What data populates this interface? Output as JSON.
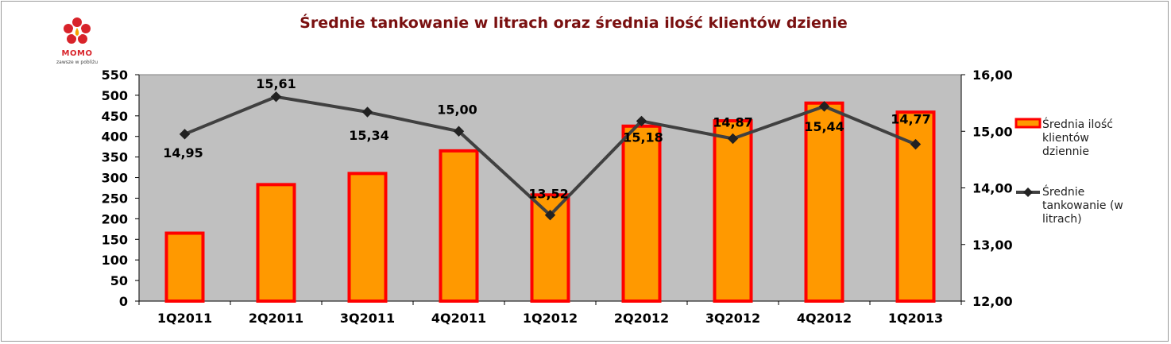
{
  "brand": {
    "name": "MOMO",
    "tagline": "zawsze w pobliżu"
  },
  "chart_data": {
    "type": "bar",
    "title": "Średnie tankowanie w litrach oraz średnia ilość klientów dzienie",
    "categories": [
      "1Q2011",
      "2Q2011",
      "3Q2011",
      "4Q2011",
      "1Q2012",
      "2Q2012",
      "3Q2012",
      "4Q2012",
      "1Q2013"
    ],
    "series": [
      {
        "name": "Średnia ilość klientów dziennie",
        "name_lines": [
          "Średnia ilość",
          "klientów",
          "dziennie"
        ],
        "type": "bar",
        "axis": "left",
        "color": "#ff9900",
        "border_color": "#ff0000",
        "values": [
          165,
          283,
          310,
          365,
          258,
          425,
          438,
          481,
          459
        ]
      },
      {
        "name": "Średnie tankowanie (w litrach)",
        "name_lines": [
          "Średnie",
          "tankowanie (w",
          "litrach)"
        ],
        "type": "line",
        "axis": "right",
        "color": "#404040",
        "values": [
          14.95,
          15.61,
          15.34,
          15.0,
          13.52,
          15.18,
          14.87,
          15.44,
          14.77
        ],
        "labels": [
          "14,95",
          "15,61",
          "15,34",
          "15,00",
          "13,52",
          "15,18",
          "14,87",
          "15,44",
          "14,77"
        ]
      }
    ],
    "y_left": {
      "ylim": [
        0,
        550
      ],
      "ticks": [
        "0",
        "50",
        "100",
        "150",
        "200",
        "250",
        "300",
        "350",
        "400",
        "450",
        "500",
        "550"
      ]
    },
    "y_right": {
      "ylim": [
        12,
        16
      ],
      "ticks": [
        "12,00",
        "13,00",
        "14,00",
        "15,00",
        "16,00"
      ]
    },
    "grid": false,
    "plot_background": "#c0c0c0",
    "legend_position": "right"
  }
}
